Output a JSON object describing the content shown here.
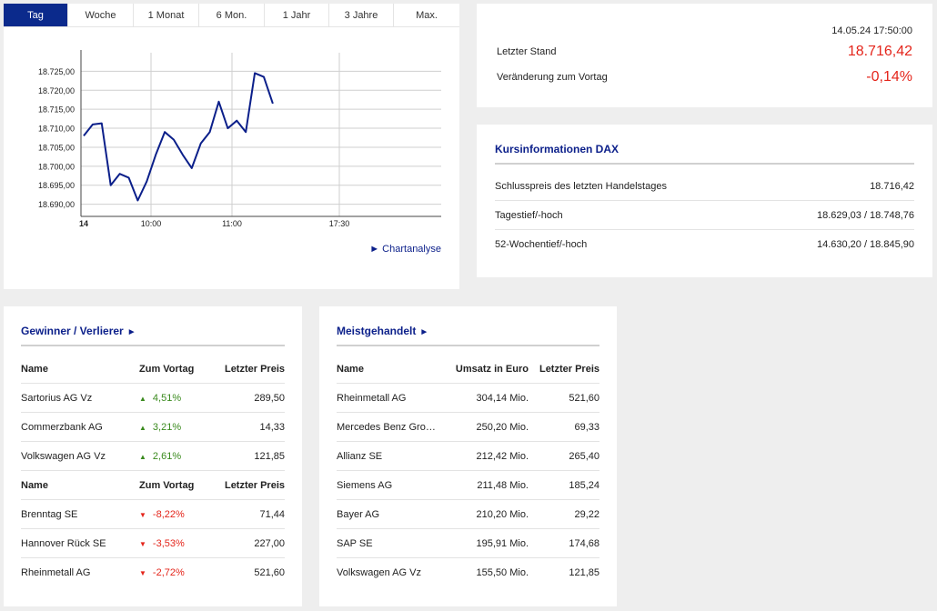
{
  "tabs": [
    {
      "label": "Tag",
      "active": true
    },
    {
      "label": "Woche"
    },
    {
      "label": "1 Monat"
    },
    {
      "label": "6 Mon."
    },
    {
      "label": "1 Jahr"
    },
    {
      "label": "3 Jahre"
    },
    {
      "label": "Max."
    }
  ],
  "chart_link": "► Chartanalyse",
  "chart_data": {
    "type": "line",
    "x_ticks": [
      "14",
      "10:00",
      "11:00",
      "17:30"
    ],
    "y_ticks": [
      "18.725,00",
      "18.720,00",
      "18.715,00",
      "18.710,00",
      "18.705,00",
      "18.700,00",
      "18.695,00",
      "18.690,00"
    ],
    "ylim": [
      18688,
      18727
    ],
    "values": [
      18708,
      18711,
      18711.3,
      18695,
      18698,
      18697,
      18691,
      18696,
      18703,
      18709,
      18707,
      18703,
      18699.5,
      18706,
      18709,
      18717,
      18710,
      18712,
      18709,
      18724.5,
      18723.5,
      18716.5
    ],
    "line_color": "#0b1f8a",
    "grid": true
  },
  "summary": {
    "date": "14.05.24 17:50:00",
    "last_label": "Letzter Stand",
    "last_value": "18.716,42",
    "change_label": "Veränderung zum Vortag",
    "change_value": "-0,14%"
  },
  "info": {
    "title": "Kursinformationen DAX",
    "rows": [
      {
        "label": "Schlusspreis des letzten Handelstages",
        "value": "18.716,42"
      },
      {
        "label": "Tagestief/-hoch",
        "value": "18.629,03 / 18.748,76"
      },
      {
        "label": "52-Wochentief/-hoch",
        "value": "14.630,20 / 18.845,90"
      }
    ]
  },
  "movers": {
    "title": "Gewinner / Verlierer",
    "headers": {
      "name": "Name",
      "change": "Zum Vortag",
      "price": "Letzter Preis"
    },
    "gainers": [
      {
        "name": "Sartorius AG Vz",
        "change": "4,51%",
        "price": "289,50"
      },
      {
        "name": "Commerzbank AG",
        "change": "3,21%",
        "price": "14,33"
      },
      {
        "name": "Volkswagen AG Vz",
        "change": "2,61%",
        "price": "121,85"
      }
    ],
    "losers": [
      {
        "name": "Brenntag SE",
        "change": "-8,22%",
        "price": "71,44"
      },
      {
        "name": "Hannover Rück SE",
        "change": "-3,53%",
        "price": "227,00"
      },
      {
        "name": "Rheinmetall AG",
        "change": "-2,72%",
        "price": "521,60"
      }
    ]
  },
  "traded": {
    "title": "Meistgehandelt",
    "headers": {
      "name": "Name",
      "turnover": "Umsatz in Euro",
      "price": "Letzter Preis"
    },
    "rows": [
      {
        "name": "Rheinmetall AG",
        "turnover": "304,14 Mio.",
        "price": "521,60"
      },
      {
        "name": "Mercedes Benz Group AG",
        "turnover": "250,20 Mio.",
        "price": "69,33"
      },
      {
        "name": "Allianz SE",
        "turnover": "212,42 Mio.",
        "price": "265,40"
      },
      {
        "name": "Siemens AG",
        "turnover": "211,48 Mio.",
        "price": "185,24"
      },
      {
        "name": "Bayer AG",
        "turnover": "210,20 Mio.",
        "price": "29,22"
      },
      {
        "name": "SAP SE",
        "turnover": "195,91 Mio.",
        "price": "174,68"
      },
      {
        "name": "Volkswagen AG Vz",
        "turnover": "155,50 Mio.",
        "price": "121,85"
      }
    ]
  }
}
